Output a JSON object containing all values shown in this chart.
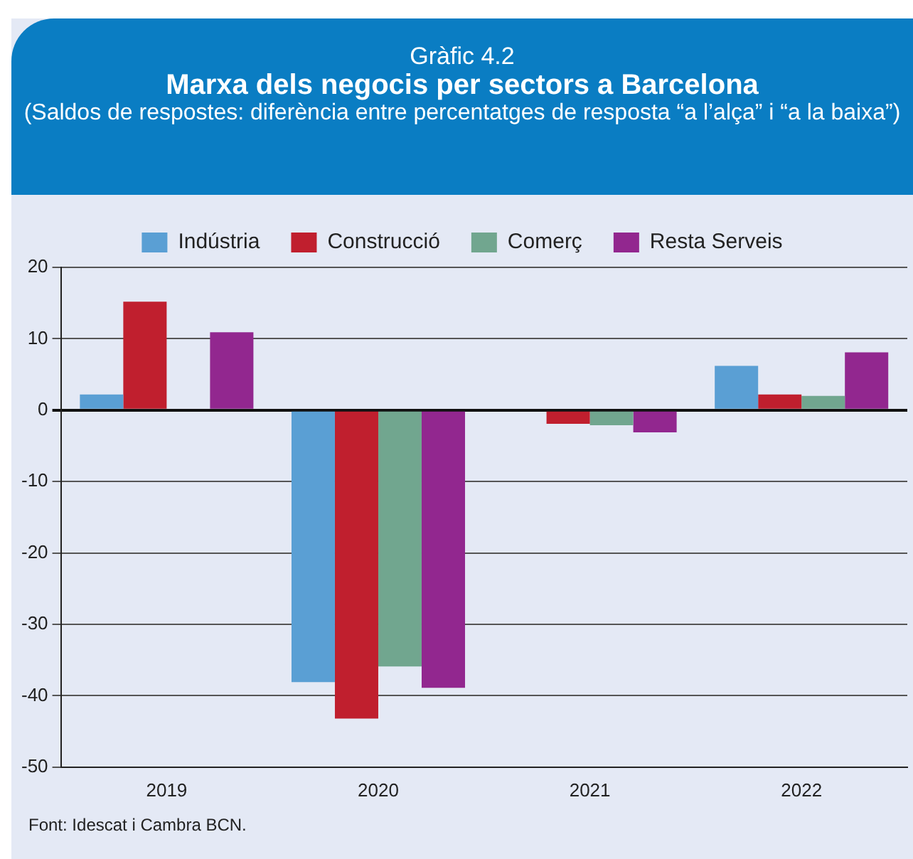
{
  "chart_data": {
    "type": "bar",
    "subtitle": "Gràfic 4.2",
    "title": "Marxa dels negocis per sectors a Barcelona",
    "annotations": [
      "(Saldos de respostes: diferència entre percentatges de resposta “a l’alça” i “a la baixa”)",
      "Font: Idescat i Cambra BCN."
    ],
    "categories": [
      "2019",
      "2020",
      "2021",
      "2022"
    ],
    "series": [
      {
        "name": "Indústria",
        "color": "#5a9fd4",
        "values": [
          2.2,
          -38.1,
          0,
          6.2
        ]
      },
      {
        "name": "Construcció",
        "color": "#c01f2e",
        "values": [
          15.2,
          -43.2,
          -1.9,
          2.2
        ]
      },
      {
        "name": "Comerç",
        "color": "#71a68f",
        "values": [
          0,
          -35.9,
          -2.1,
          2
        ]
      },
      {
        "name": "Resta Serveis",
        "color": "#92278f",
        "values": [
          10.9,
          -38.9,
          -3.1,
          8.1
        ]
      }
    ],
    "ylim": [
      -50,
      20
    ],
    "yticks": [
      -50,
      -40,
      -30,
      -20,
      -10,
      0,
      10,
      20
    ],
    "grid": "y",
    "legend": "top"
  }
}
